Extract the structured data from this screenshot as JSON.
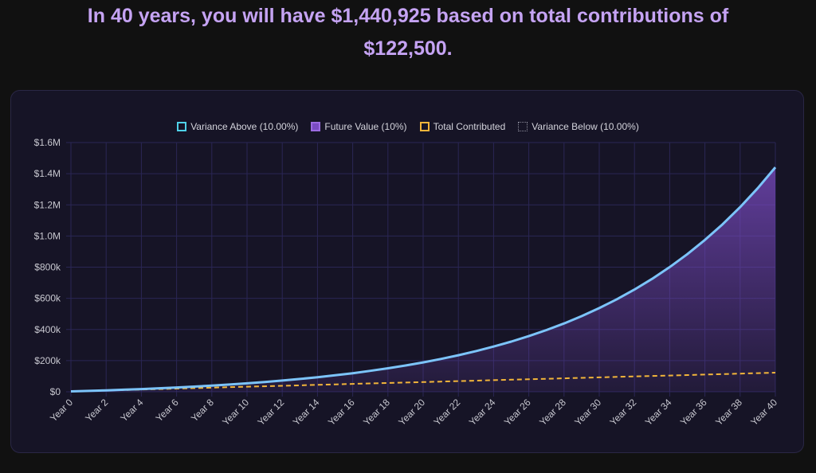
{
  "header": {
    "line1": "In 40 years, you will have $1,440,925 based on total contributions of",
    "line2": "$122,500."
  },
  "colors": {
    "future_value_line": "#7cc4fa",
    "future_value_fill": "#7a4bc2",
    "total_contributed": "#f2b53a",
    "variance_above": "#4fd1e8",
    "variance_below": "#8a8a99",
    "title": "#c5a3f3"
  },
  "chart_data": {
    "type": "line",
    "x": [
      0,
      1,
      2,
      3,
      4,
      5,
      6,
      7,
      8,
      9,
      10,
      11,
      12,
      13,
      14,
      15,
      16,
      17,
      18,
      19,
      20,
      21,
      22,
      23,
      24,
      25,
      26,
      27,
      28,
      29,
      30,
      31,
      32,
      33,
      34,
      35,
      36,
      37,
      38,
      39,
      40
    ],
    "x_tick_labels": [
      "Year 0",
      "Year 2",
      "Year 4",
      "Year 6",
      "Year 8",
      "Year 10",
      "Year 12",
      "Year 14",
      "Year 16",
      "Year 18",
      "Year 20",
      "Year 22",
      "Year 24",
      "Year 26",
      "Year 28",
      "Year 30",
      "Year 32",
      "Year 34",
      "Year 36",
      "Year 38",
      "Year 40"
    ],
    "y_tick_labels": [
      "$0",
      "$200k",
      "$400k",
      "$600k",
      "$800k",
      "$1.0M",
      "$1.2M",
      "$1.4M",
      "$1.6M"
    ],
    "ylim": [
      0,
      1600000
    ],
    "grid": true,
    "legend_position": "top",
    "legend": [
      {
        "label": "Variance Above (10.00%)",
        "style": "outline"
      },
      {
        "label": "Future Value (10%)",
        "style": "filled"
      },
      {
        "label": "Total Contributed",
        "style": "dashed"
      },
      {
        "label": "Variance Below (10.00%)",
        "style": "dotted"
      }
    ],
    "series": [
      {
        "name": "Future Value (10%)",
        "values": [
          2500,
          5750,
          9325,
          13258,
          17583,
          22342,
          27576,
          33333,
          39667,
          46633,
          54297,
          62726,
          71999,
          82199,
          93419,
          105761,
          119337,
          134270,
          150697,
          168767,
          188644,
          210508,
          234559,
          261015,
          290116,
          322128,
          357341,
          396075,
          438682,
          485551,
          537106,
          593816,
          656198,
          724818,
          800299,
          883329,
          974662,
          1075128,
          1185641,
          1307205,
          1440925
        ]
      },
      {
        "name": "Total Contributed",
        "values": [
          2500,
          5500,
          8500,
          11500,
          14500,
          17500,
          20500,
          23500,
          26500,
          29500,
          32500,
          35500,
          38500,
          41500,
          44500,
          47500,
          50500,
          53500,
          56500,
          59500,
          62500,
          65500,
          68500,
          71500,
          74500,
          77500,
          80500,
          83500,
          86500,
          89500,
          92500,
          95500,
          98500,
          101500,
          104500,
          107500,
          110500,
          113500,
          116500,
          119500,
          122500
        ]
      }
    ]
  }
}
